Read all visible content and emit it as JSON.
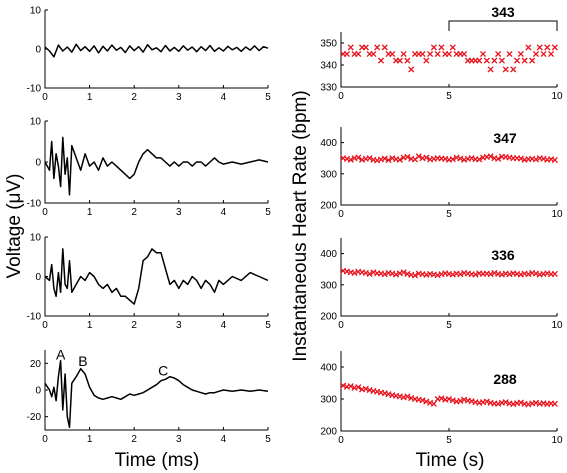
{
  "labels": {
    "left_ylabel": "Voltage (μV)",
    "left_xlabel": "Time (ms)",
    "right_ylabel": "Instantaneous Heart Rate (bpm)",
    "right_xlabel": "Time (s)"
  },
  "colors": {
    "trace": "#000000",
    "marker": "#e8101a"
  },
  "chart_data": [
    {
      "type": "line",
      "panel": "voltage-1",
      "xlim": [
        0,
        5
      ],
      "ylim": [
        -10,
        10
      ],
      "xticks": [
        0,
        1,
        2,
        3,
        4,
        5
      ],
      "yticks": [
        -10,
        0,
        10
      ],
      "x": [
        0,
        0.1,
        0.2,
        0.3,
        0.4,
        0.5,
        0.6,
        0.7,
        0.8,
        0.9,
        1.0,
        1.1,
        1.2,
        1.3,
        1.4,
        1.5,
        1.6,
        1.7,
        1.8,
        1.9,
        2.0,
        2.1,
        2.2,
        2.3,
        2.4,
        2.5,
        2.6,
        2.7,
        2.8,
        2.9,
        3.0,
        3.1,
        3.2,
        3.3,
        3.4,
        3.5,
        3.6,
        3.7,
        3.8,
        3.9,
        4.0,
        4.1,
        4.2,
        4.3,
        4.4,
        4.5,
        4.6,
        4.7,
        4.8,
        4.9,
        5.0
      ],
      "y": [
        0.5,
        -0.5,
        -2.0,
        1.0,
        -0.5,
        0.5,
        -0.8,
        1.2,
        -0.4,
        0.6,
        -0.6,
        0.8,
        -1.0,
        0.7,
        -0.5,
        1.0,
        -0.3,
        0.4,
        -0.9,
        0.8,
        -0.4,
        0.6,
        -0.8,
        1.1,
        -0.2,
        0.3,
        -0.7,
        0.9,
        -0.5,
        0.4,
        -0.6,
        0.8,
        -0.3,
        0.5,
        -0.7,
        0.6,
        -0.4,
        0.9,
        -0.6,
        0.3,
        -0.5,
        0.7,
        -0.2,
        0.4,
        -0.6,
        0.5,
        -0.3,
        0.8,
        -0.4,
        0.6,
        0.2
      ],
      "annotations": []
    },
    {
      "type": "line",
      "panel": "voltage-2",
      "xlim": [
        0,
        5
      ],
      "ylim": [
        -10,
        10
      ],
      "xticks": [
        0,
        1,
        2,
        3,
        4,
        5
      ],
      "yticks": [
        -10,
        0,
        10
      ],
      "x": [
        0,
        0.1,
        0.15,
        0.2,
        0.25,
        0.3,
        0.35,
        0.4,
        0.45,
        0.5,
        0.55,
        0.6,
        0.7,
        0.8,
        0.9,
        1.0,
        1.1,
        1.2,
        1.3,
        1.4,
        1.5,
        1.6,
        1.7,
        1.8,
        1.9,
        2.0,
        2.1,
        2.2,
        2.3,
        2.4,
        2.5,
        2.6,
        2.7,
        2.8,
        2.9,
        3.0,
        3.1,
        3.2,
        3.3,
        3.4,
        3.5,
        3.6,
        3.7,
        3.8,
        3.9,
        4.0,
        4.2,
        4.4,
        4.6,
        4.8,
        5.0
      ],
      "y": [
        0,
        -2,
        5,
        -4,
        2,
        -1,
        -6,
        6,
        -3,
        1,
        -8,
        4,
        1,
        -2,
        2,
        -1,
        0,
        -2,
        1,
        -1,
        0,
        -1,
        -2,
        -3,
        -4,
        -3,
        0,
        2,
        3,
        2,
        1,
        1,
        0,
        -1,
        0,
        -1,
        0,
        0,
        -1,
        0,
        0,
        -1,
        0,
        1,
        0,
        -0.5,
        0,
        -0.5,
        0,
        0.5,
        0
      ],
      "annotations": []
    },
    {
      "type": "line",
      "panel": "voltage-3",
      "xlim": [
        0,
        5
      ],
      "ylim": [
        -10,
        10
      ],
      "xticks": [
        0,
        1,
        2,
        3,
        4,
        5
      ],
      "yticks": [
        -10,
        0,
        10
      ],
      "x": [
        0,
        0.1,
        0.15,
        0.2,
        0.25,
        0.3,
        0.35,
        0.4,
        0.45,
        0.5,
        0.55,
        0.6,
        0.7,
        0.8,
        0.9,
        1.0,
        1.1,
        1.2,
        1.3,
        1.4,
        1.5,
        1.6,
        1.7,
        1.8,
        1.9,
        2.0,
        2.1,
        2.2,
        2.3,
        2.4,
        2.5,
        2.6,
        2.7,
        2.8,
        2.9,
        3.0,
        3.1,
        3.2,
        3.3,
        3.4,
        3.5,
        3.6,
        3.7,
        3.8,
        3.9,
        4.0,
        4.2,
        4.4,
        4.6,
        4.8,
        5.0
      ],
      "y": [
        0,
        -1,
        3,
        -3,
        -5,
        1,
        -4,
        7,
        -2,
        -3,
        4,
        -4,
        -2,
        0,
        -1,
        1,
        0,
        -2,
        -3,
        -2,
        -4,
        -3,
        -5,
        -5,
        -6,
        -7,
        -3,
        4,
        5,
        7,
        6,
        6,
        2,
        -2,
        -1,
        -3,
        -1,
        -2,
        0,
        -1,
        -3,
        -1,
        -2,
        -4,
        -1,
        -2,
        0,
        -1,
        1,
        0,
        -1
      ],
      "annotations": []
    },
    {
      "type": "line",
      "panel": "voltage-4",
      "xlim": [
        0,
        5
      ],
      "ylim": [
        -30,
        30
      ],
      "xticks": [
        0,
        1,
        2,
        3,
        4,
        5
      ],
      "yticks": [
        -20,
        0,
        20
      ],
      "x": [
        0,
        0.1,
        0.15,
        0.2,
        0.25,
        0.3,
        0.35,
        0.4,
        0.45,
        0.5,
        0.55,
        0.6,
        0.7,
        0.8,
        0.9,
        1.0,
        1.1,
        1.2,
        1.3,
        1.4,
        1.5,
        1.6,
        1.7,
        1.8,
        1.9,
        2.0,
        2.1,
        2.2,
        2.3,
        2.4,
        2.5,
        2.6,
        2.7,
        2.8,
        2.9,
        3.0,
        3.1,
        3.2,
        3.3,
        3.4,
        3.5,
        3.6,
        3.7,
        3.8,
        3.9,
        4.0,
        4.2,
        4.4,
        4.6,
        4.8,
        5.0
      ],
      "y": [
        5,
        0,
        -5,
        2,
        -8,
        10,
        22,
        -15,
        12,
        -20,
        -28,
        5,
        10,
        16,
        12,
        2,
        -4,
        -6,
        -7,
        -6,
        -5,
        -6,
        -7,
        -5,
        -3,
        -4,
        -3,
        -2,
        0,
        2,
        4,
        7,
        8,
        10,
        9,
        7,
        4,
        2,
        0,
        -1,
        -2,
        -3,
        -2,
        -2,
        -1,
        0,
        -1,
        0,
        -1,
        0,
        -1
      ],
      "annotations": [
        {
          "text": "A",
          "x": 0.35,
          "y": 23
        },
        {
          "text": "B",
          "x": 0.85,
          "y": 18
        },
        {
          "text": "C",
          "x": 2.65,
          "y": 11
        }
      ]
    },
    {
      "type": "scatter",
      "panel": "heart-rate-1",
      "xlim": [
        0,
        10
      ],
      "ylim": [
        330,
        355
      ],
      "xticks": [
        0,
        5,
        10
      ],
      "yticks": [
        330,
        340,
        350
      ],
      "y": [
        345,
        345,
        348,
        345,
        345,
        348,
        348,
        345,
        345,
        348,
        342,
        348,
        345,
        345,
        342,
        342,
        345,
        342,
        338,
        345,
        345,
        345,
        342,
        345,
        348,
        345,
        348,
        345,
        345,
        348,
        345,
        345,
        345,
        342,
        342,
        342,
        342,
        345,
        342,
        338,
        342,
        345,
        342,
        338,
        345,
        338,
        342,
        345,
        342,
        348,
        342,
        345,
        348,
        345,
        348,
        345,
        348
      ],
      "annotations": [
        {
          "text": "343",
          "bracket": [
            5,
            10
          ]
        }
      ]
    },
    {
      "type": "scatter",
      "panel": "heart-rate-2",
      "xlim": [
        0,
        10
      ],
      "ylim": [
        200,
        450
      ],
      "xticks": [
        0,
        5,
        10
      ],
      "yticks": [
        200,
        300,
        400
      ],
      "y": [
        350,
        348,
        345,
        350,
        352,
        345,
        348,
        350,
        345,
        343,
        346,
        349,
        344,
        350,
        347,
        345,
        352,
        354,
        348,
        346,
        356,
        350,
        352,
        346,
        348,
        350,
        349,
        348,
        345,
        347,
        352,
        349,
        345,
        348,
        350,
        347,
        346,
        352,
        354,
        356,
        350,
        348,
        355,
        354,
        352,
        350,
        350,
        349,
        345,
        347,
        348,
        346,
        350,
        348,
        345,
        347,
        344
      ],
      "annotations": [
        {
          "text": "347"
        }
      ]
    },
    {
      "type": "scatter",
      "panel": "heart-rate-3",
      "xlim": [
        0,
        10
      ],
      "ylim": [
        200,
        450
      ],
      "xticks": [
        0,
        5,
        10
      ],
      "yticks": [
        200,
        300,
        400
      ],
      "y": [
        345,
        343,
        340,
        338,
        342,
        340,
        338,
        335,
        340,
        337,
        336,
        334,
        338,
        336,
        333,
        337,
        340,
        335,
        332,
        330,
        336,
        334,
        332,
        335,
        333,
        331,
        334,
        337,
        335,
        333,
        336,
        334,
        338,
        336,
        334,
        333,
        337,
        335,
        336,
        334,
        338,
        335,
        333,
        336,
        334,
        337,
        335,
        333,
        336,
        334,
        338,
        336,
        333,
        335,
        337,
        334,
        335
      ],
      "annotations": [
        {
          "text": "336"
        }
      ]
    },
    {
      "type": "scatter",
      "panel": "heart-rate-4",
      "xlim": [
        0,
        10
      ],
      "ylim": [
        200,
        450
      ],
      "xticks": [
        0,
        5,
        10
      ],
      "yticks": [
        200,
        300,
        400
      ],
      "y": [
        342,
        338,
        340,
        335,
        337,
        330,
        332,
        328,
        325,
        323,
        320,
        318,
        315,
        312,
        310,
        308,
        305,
        308,
        303,
        300,
        298,
        296,
        292,
        288,
        285,
        300,
        302,
        298,
        300,
        296,
        292,
        294,
        298,
        295,
        293,
        290,
        288,
        290,
        292,
        288,
        286,
        285,
        288,
        290,
        286,
        284,
        287,
        289,
        285,
        283,
        286,
        288,
        285,
        287,
        284,
        286,
        285
      ],
      "annotations": [
        {
          "text": "288"
        }
      ]
    }
  ]
}
